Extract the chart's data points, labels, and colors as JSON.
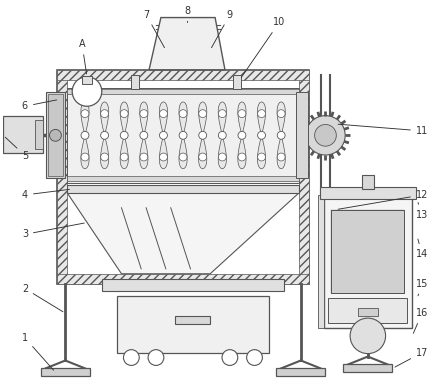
{
  "bg_color": "#ffffff",
  "lc": "#555555",
  "fig_width": 4.44,
  "fig_height": 3.82,
  "dpi": 100
}
